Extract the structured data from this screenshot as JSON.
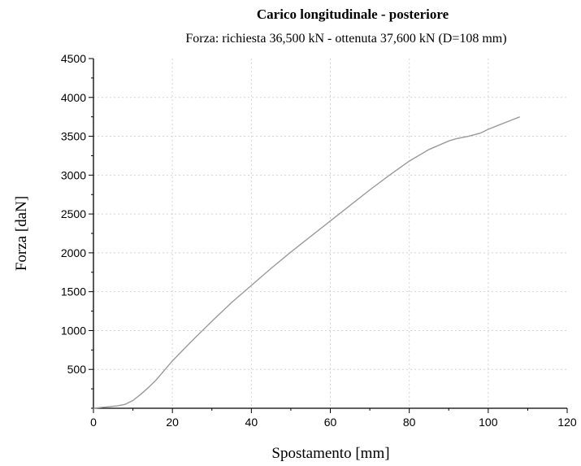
{
  "chart_data": {
    "type": "line",
    "title": "Carico longitudinale - posteriore",
    "subtitle": "Forza: richiesta 36,500 kN - ottenuta 37,600 kN (D=108 mm)",
    "xlabel": "Spostamento [mm]",
    "ylabel": "Forza [daN]",
    "xlim": [
      0,
      120
    ],
    "ylim": [
      0,
      4500
    ],
    "xticks": [
      0,
      20,
      40,
      60,
      80,
      100,
      120
    ],
    "yticks": [
      500,
      1000,
      1500,
      2000,
      2500,
      3000,
      3500,
      4000,
      4500
    ],
    "grid": true,
    "legend": "none",
    "series": [
      {
        "color": "#9a9a9a",
        "x": [
          0,
          2,
          4,
          6,
          8,
          10,
          12,
          14,
          16,
          18,
          20,
          25,
          30,
          35,
          40,
          45,
          50,
          55,
          60,
          65,
          70,
          75,
          80,
          85,
          90,
          92,
          95,
          98,
          100,
          103,
          105,
          108
        ],
        "y": [
          0,
          10,
          20,
          30,
          50,
          100,
          180,
          270,
          370,
          490,
          610,
          870,
          1120,
          1360,
          1580,
          1800,
          2010,
          2210,
          2410,
          2610,
          2810,
          3000,
          3180,
          3330,
          3440,
          3470,
          3500,
          3540,
          3590,
          3650,
          3690,
          3750
        ]
      }
    ]
  }
}
